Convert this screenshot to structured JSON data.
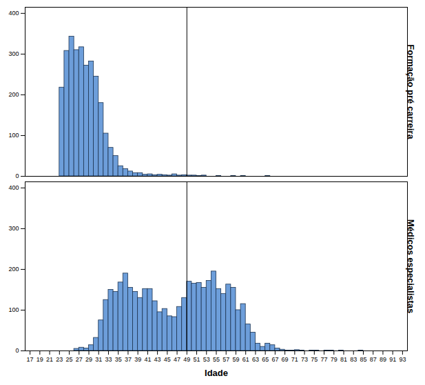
{
  "chart_data": {
    "type": "histogram",
    "x_label": "Idade",
    "color": "#6d9eda",
    "bins": [
      17,
      18,
      19,
      20,
      21,
      22,
      23,
      24,
      25,
      26,
      27,
      28,
      29,
      30,
      31,
      32,
      33,
      34,
      35,
      36,
      37,
      38,
      39,
      40,
      41,
      42,
      43,
      44,
      45,
      46,
      47,
      48,
      49,
      50,
      51,
      52,
      53,
      54,
      55,
      56,
      57,
      58,
      59,
      60,
      61,
      62,
      63,
      64,
      65,
      66,
      67,
      68,
      69,
      70,
      71,
      72,
      73,
      74,
      75,
      76,
      77,
      78,
      79,
      80,
      81,
      82,
      83,
      84,
      85,
      86,
      87,
      88,
      89,
      90,
      91,
      92,
      93,
      94
    ],
    "series": [
      {
        "name": "Formação pré carreira",
        "values": [
          0,
          0,
          0,
          0,
          0,
          0,
          218,
          308,
          343,
          310,
          317,
          272,
          282,
          245,
          180,
          105,
          70,
          50,
          25,
          18,
          12,
          8,
          8,
          4,
          5,
          3,
          4,
          3,
          2,
          5,
          2,
          3,
          2,
          2,
          1,
          2,
          0,
          0,
          1,
          0,
          0,
          1,
          0,
          1,
          0,
          0,
          0,
          0,
          1,
          0,
          0,
          0,
          0,
          0,
          0,
          0,
          0,
          0,
          0,
          0,
          0,
          0,
          0,
          0,
          0,
          0,
          0,
          0,
          0,
          0,
          0,
          0,
          0,
          0,
          0,
          0,
          0
        ]
      },
      {
        "name": "Médicos especialistas",
        "values": [
          0,
          0,
          0,
          0,
          0,
          0,
          0,
          0,
          0,
          5,
          8,
          6,
          14,
          32,
          75,
          125,
          150,
          145,
          168,
          190,
          155,
          145,
          130,
          152,
          152,
          122,
          95,
          103,
          85,
          83,
          108,
          130,
          170,
          165,
          167,
          155,
          172,
          195,
          152,
          140,
          163,
          155,
          100,
          115,
          65,
          45,
          18,
          10,
          18,
          14,
          6,
          3,
          1,
          1,
          2,
          1,
          0,
          1,
          1,
          0,
          1,
          1,
          0,
          1,
          0,
          0,
          0,
          1,
          0,
          0,
          0,
          0,
          0,
          0,
          0,
          0,
          0
        ]
      }
    ],
    "reference_line": 49,
    "xlim": [
      16,
      94
    ],
    "xticks": [
      17,
      19,
      21,
      23,
      25,
      27,
      29,
      31,
      33,
      35,
      37,
      39,
      41,
      43,
      45,
      47,
      49,
      51,
      53,
      55,
      57,
      59,
      61,
      63,
      65,
      67,
      69,
      71,
      73,
      75,
      77,
      79,
      81,
      83,
      85,
      87,
      89,
      91,
      93
    ],
    "ylim": [
      0,
      415
    ],
    "yticks": [
      0,
      100,
      200,
      300,
      400
    ]
  }
}
